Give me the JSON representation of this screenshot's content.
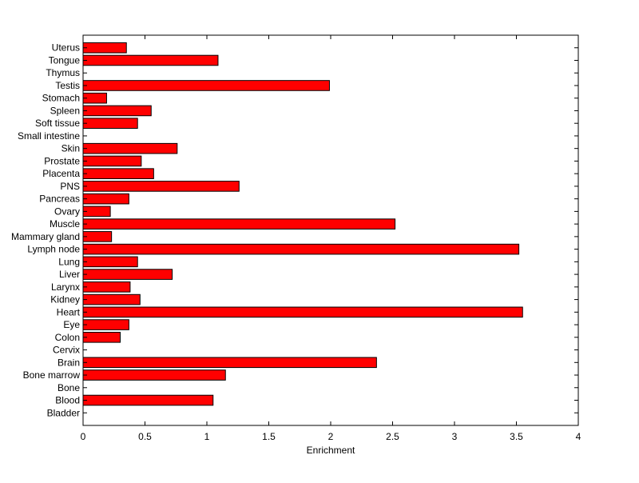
{
  "chart_data": {
    "type": "bar",
    "orientation": "horizontal",
    "xlabel": "Enrichment",
    "ylabel": "",
    "title": "",
    "xlim": [
      0,
      4
    ],
    "xticks": [
      "0",
      "0.5",
      "1",
      "1.5",
      "2",
      "2.5",
      "3",
      "3.5",
      "4"
    ],
    "grid": false,
    "legend": "none",
    "bar_color": "#ff0000",
    "categories": [
      "Uterus",
      "Tongue",
      "Thymus",
      "Testis",
      "Stomach",
      "Spleen",
      "Soft tissue",
      "Small intestine",
      "Skin",
      "Prostate",
      "Placenta",
      "PNS",
      "Pancreas",
      "Ovary",
      "Muscle",
      "Mammary gland",
      "Lymph node",
      "Lung",
      "Liver",
      "Larynx",
      "Kidney",
      "Heart",
      "Eye",
      "Colon",
      "Cervix",
      "Brain",
      "Bone marrow",
      "Bone",
      "Blood",
      "Bladder"
    ],
    "values": [
      0.35,
      1.09,
      0,
      1.99,
      0.19,
      0.55,
      0.44,
      0,
      0.76,
      0.47,
      0.57,
      1.26,
      0.37,
      0.22,
      2.52,
      0.23,
      3.52,
      0.44,
      0.72,
      0.38,
      0.46,
      3.55,
      0.37,
      0.3,
      0,
      2.37,
      1.15,
      0,
      1.05,
      0
    ]
  }
}
